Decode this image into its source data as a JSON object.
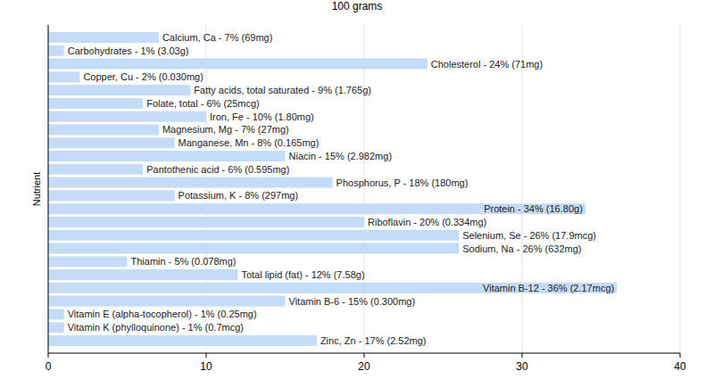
{
  "chart_data": {
    "type": "bar",
    "orientation": "horizontal",
    "title": "100 grams",
    "y_label": "Nutrient",
    "categories": [
      "Calcium, Ca - 7% (69mg)",
      "Carbohydrates - 1% (3.03g)",
      "Cholesterol - 24% (71mg)",
      "Copper, Cu - 2% (0.030mg)",
      "Fatty acids, total saturated - 9% (1.765g)",
      "Folate, total - 6% (25mcg)",
      "Iron, Fe - 10% (1.80mg)",
      "Magnesium, Mg - 7% (27mg)",
      "Manganese, Mn - 8% (0.165mg)",
      "Niacin - 15% (2.982mg)",
      "Pantothenic acid - 6% (0.595mg)",
      "Phosphorus, P - 18% (180mg)",
      "Potassium, K - 8% (297mg)",
      "Protein - 34% (16.80g)",
      "Riboflavin - 20% (0.334mg)",
      "Selenium, Se - 26% (17.9mcg)",
      "Sodium, Na - 26% (632mg)",
      "Thiamin - 5% (0.078mg)",
      "Total lipid (fat) - 12% (7.58g)",
      "Vitamin B-12 - 36% (2.17mcg)",
      "Vitamin B-6 - 15% (0.300mg)",
      "Vitamin E (alpha-tocopherol) - 1% (0.25mg)",
      "Vitamin K (phylloquinone) - 1% (0.7mcg)",
      "Zinc, Zn - 17% (2.52mg)"
    ],
    "values": [
      7,
      1,
      24,
      2,
      9,
      6,
      10,
      7,
      8,
      15,
      6,
      18,
      8,
      34,
      20,
      26,
      26,
      5,
      12,
      36,
      15,
      1,
      1,
      17
    ],
    "color": "#c4dcf7",
    "xlim": [
      0,
      40
    ],
    "xticks": [
      0,
      10,
      20,
      30,
      40
    ],
    "grid": true,
    "tick_labels": "x"
  }
}
